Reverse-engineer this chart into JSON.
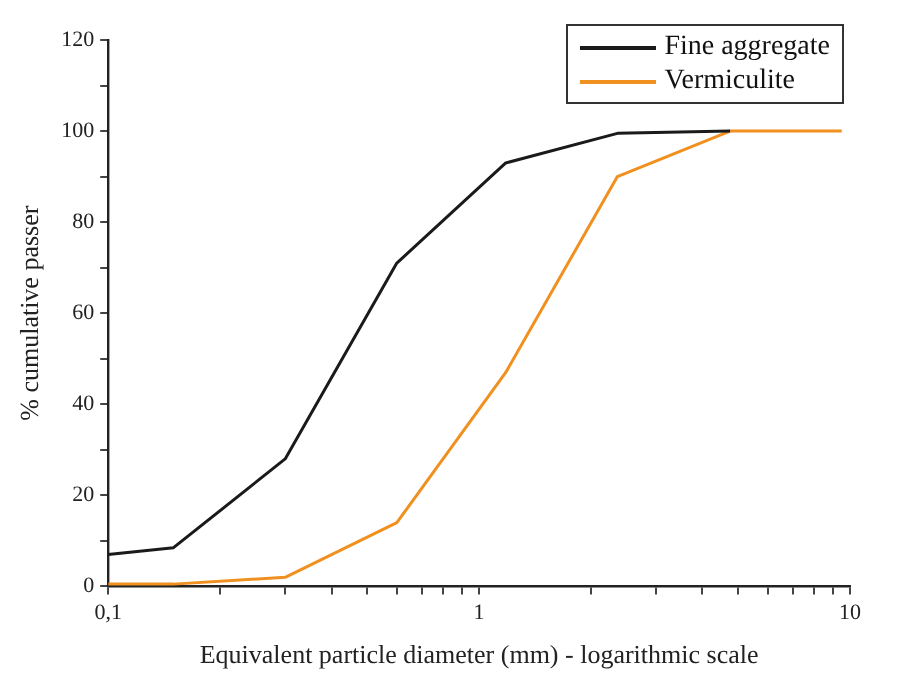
{
  "chart_data": {
    "type": "line",
    "xlabel": "Equivalent particle diameter (mm) - logarithmic scale",
    "ylabel": "% cumulative passer",
    "log": "x",
    "grid": false,
    "legend": "top right",
    "marker": "none",
    "line_style": "solid",
    "xlim": [
      0.1,
      10
    ],
    "xticks": [
      {
        "value": 0.1,
        "label": "0,1"
      },
      {
        "value": 0.2,
        "label": null
      },
      {
        "value": 0.3,
        "label": null
      },
      {
        "value": 0.4,
        "label": null
      },
      {
        "value": 0.5,
        "label": null
      },
      {
        "value": 0.6,
        "label": null
      },
      {
        "value": 0.7,
        "label": null
      },
      {
        "value": 0.8,
        "label": null
      },
      {
        "value": 0.9,
        "label": null
      },
      1,
      {
        "value": 2,
        "label": null
      },
      {
        "value": 3,
        "label": null
      },
      {
        "value": 4,
        "label": null
      },
      {
        "value": 5,
        "label": null
      },
      {
        "value": 6,
        "label": null
      },
      {
        "value": 7,
        "label": null
      },
      {
        "value": 8,
        "label": null
      },
      {
        "value": 9,
        "label": null
      },
      10
    ],
    "ylim": [
      0,
      120
    ],
    "yticks": [
      0,
      {
        "value": 10,
        "label": null
      },
      20,
      {
        "value": 30,
        "label": null
      },
      40,
      {
        "value": 50,
        "label": null
      },
      60,
      {
        "value": 70,
        "label": null
      },
      80,
      {
        "value": 90,
        "label": null
      },
      100,
      {
        "value": 110,
        "label": null
      },
      120
    ],
    "series": [
      {
        "name": "Fine aggregate",
        "color": "#1a1a1a",
        "x": [
          0.1,
          0.15,
          0.3,
          0.6,
          1.18,
          2.36,
          4.75
        ],
        "values": [
          7,
          8.5,
          28,
          71,
          93,
          99.5,
          100
        ]
      },
      {
        "name": "Vermiculite",
        "color": "#f0901e",
        "x": [
          0.1,
          0.15,
          0.3,
          0.6,
          1.18,
          2.36,
          4.75,
          9.5
        ],
        "values": [
          0.5,
          0.5,
          2,
          14,
          47,
          90,
          100,
          100
        ]
      }
    ]
  }
}
